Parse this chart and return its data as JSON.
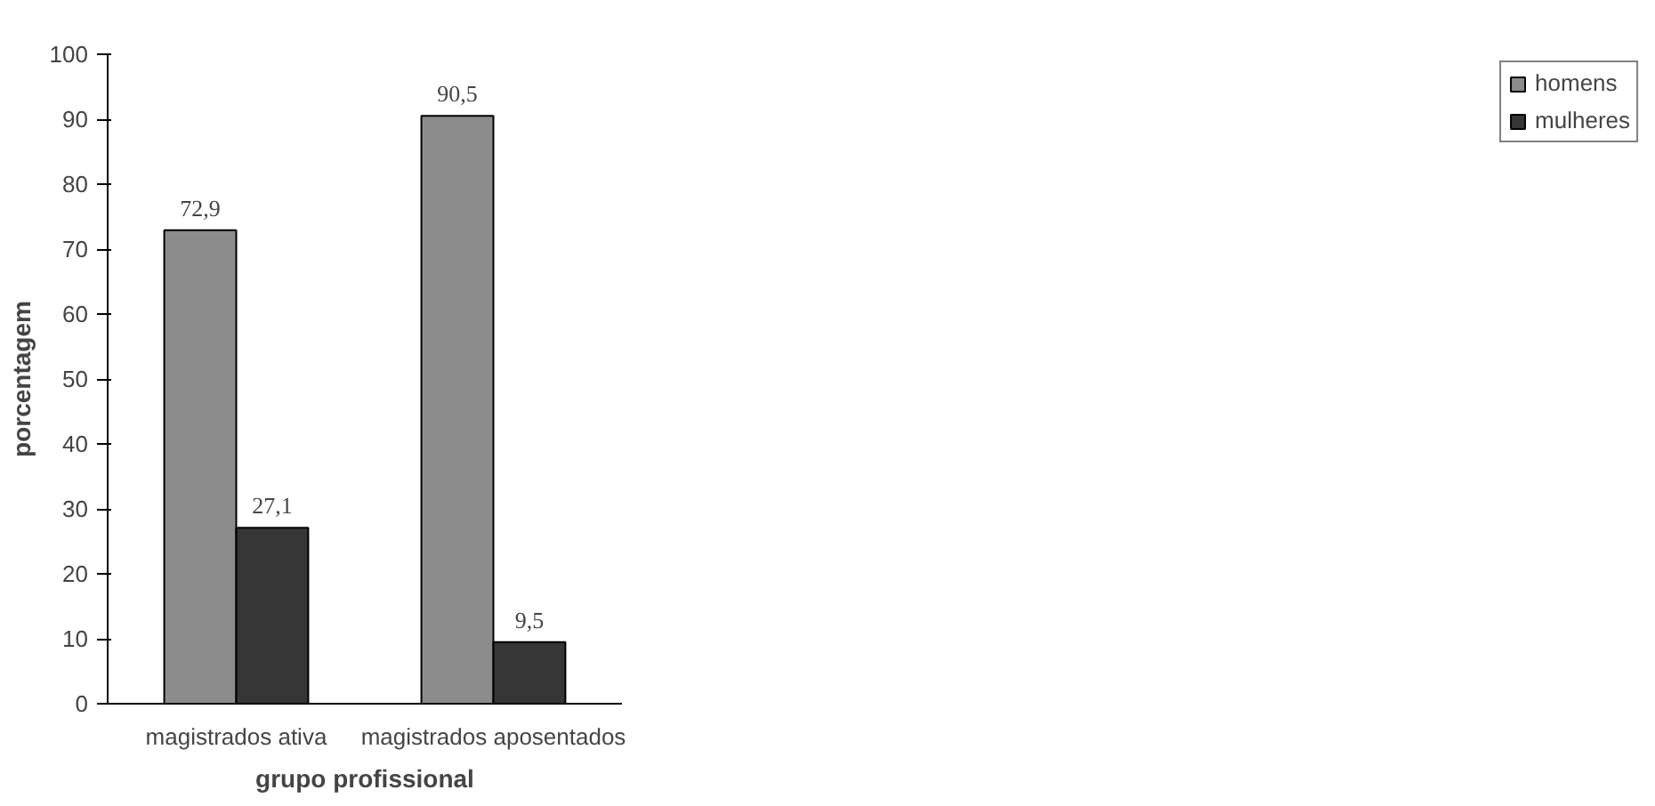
{
  "chart_data": {
    "type": "bar",
    "xlabel": "grupo profissional",
    "ylabel": "porcentagem",
    "categories": [
      "magistrados ativa",
      "magistrados aposentados"
    ],
    "series": [
      {
        "name": "homens",
        "color": "#8c8c8c",
        "values": [
          72.9,
          90.5
        ],
        "value_labels": [
          "72,9",
          "90,5"
        ]
      },
      {
        "name": "mulheres",
        "color": "#363636",
        "values": [
          27.1,
          9.5
        ],
        "value_labels": [
          "27,1",
          "9,5"
        ]
      }
    ],
    "ylim": [
      0,
      100
    ],
    "yticks": [
      0,
      10,
      20,
      30,
      40,
      50,
      60,
      70,
      80,
      90,
      100
    ],
    "grid": false,
    "legend": "right"
  }
}
